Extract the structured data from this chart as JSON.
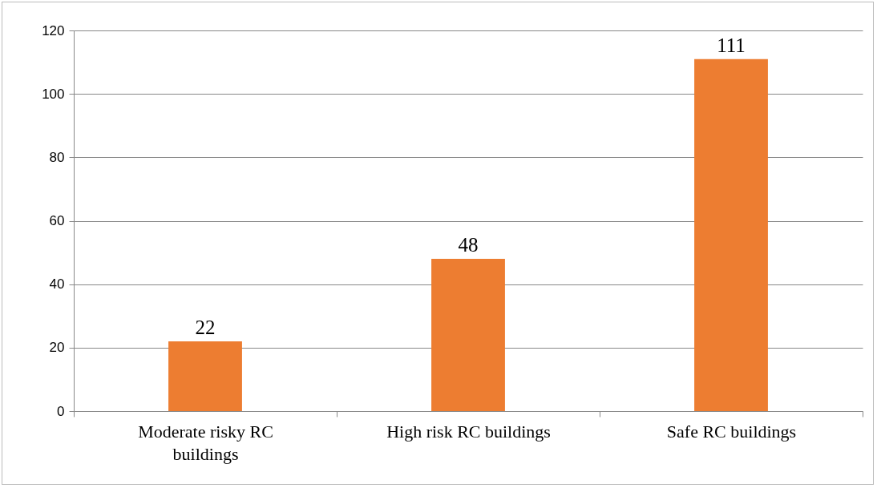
{
  "chart_data": {
    "type": "bar",
    "categories": [
      "Moderate risky RC buildings",
      "High risk RC buildings",
      "Safe RC buildings"
    ],
    "values": [
      22,
      48,
      111
    ],
    "color": "#ed7d31",
    "ylim": [
      0,
      120
    ],
    "yticks": [
      0,
      20,
      40,
      60,
      80,
      100,
      120
    ],
    "grid": "y",
    "data_labels": true
  }
}
